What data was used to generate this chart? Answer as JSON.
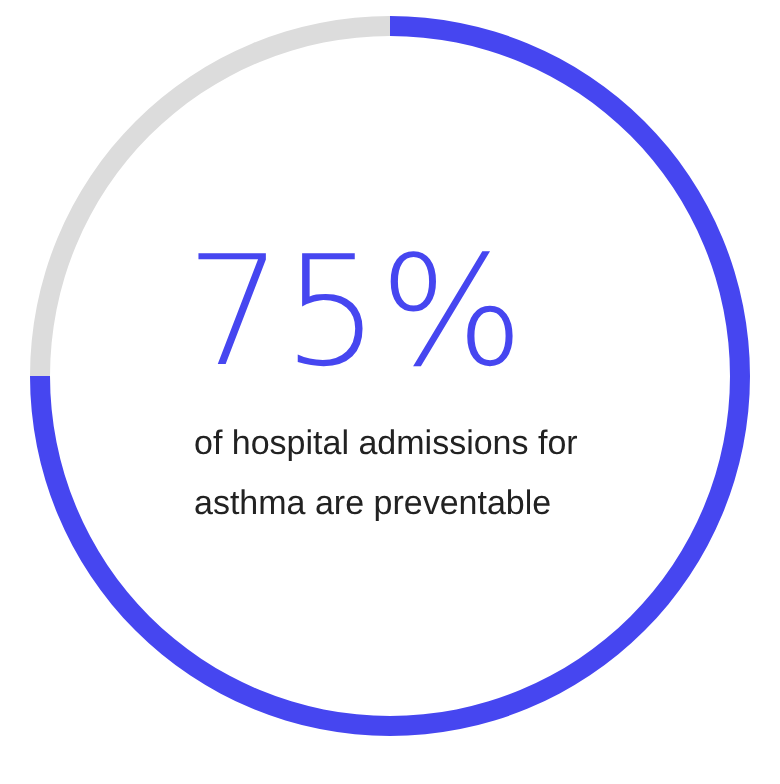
{
  "chart_data": {
    "type": "donut",
    "title": "75%",
    "annotations": [
      "of hospital admissions for asthma are preventable"
    ],
    "categories": [
      null,
      null
    ],
    "values": [
      75,
      25
    ],
    "colors": [
      "#4646f0",
      "#dcdcdc"
    ]
  }
}
